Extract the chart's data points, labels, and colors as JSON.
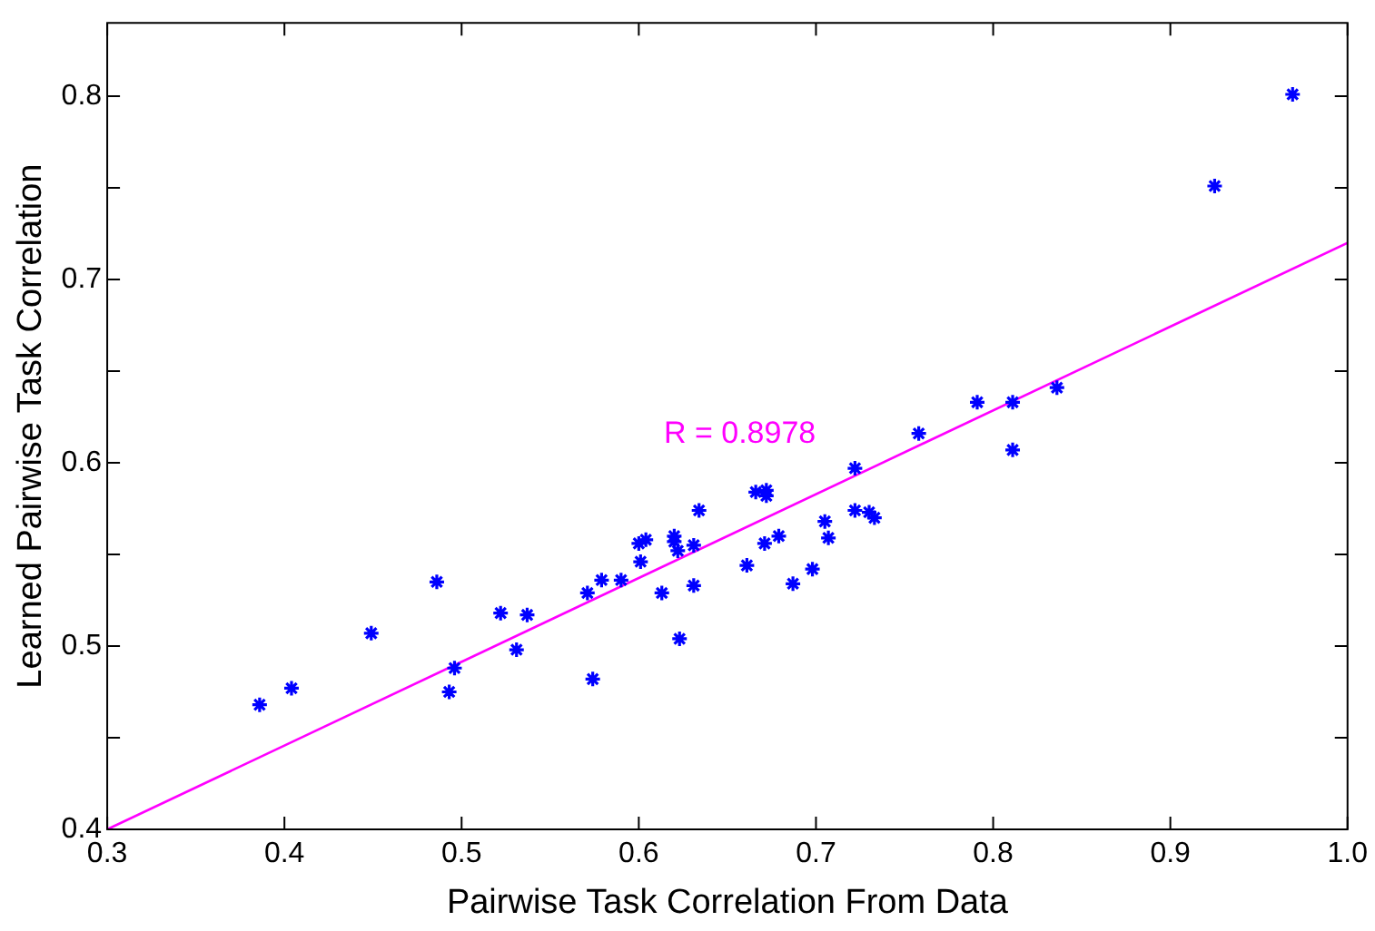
{
  "chart_data": {
    "type": "scatter",
    "xlabel": "Pairwise Task Correlation From Data",
    "ylabel": "Learned Pairwise Task Correlation",
    "xlim": [
      0.3,
      1.0
    ],
    "ylim": [
      0.4,
      0.84
    ],
    "xticks": [
      0.3,
      0.4,
      0.5,
      0.6,
      0.7,
      0.8,
      0.9,
      {
        "value": 1,
        "label": "1.0"
      }
    ],
    "yticks": [
      0.4,
      {
        "value": 0.45,
        "label": null
      },
      0.5,
      {
        "value": 0.55,
        "label": null
      },
      0.6,
      {
        "value": 0.65,
        "label": null
      },
      0.7,
      {
        "value": 0.75,
        "label": null
      },
      0.8
    ],
    "grid": false,
    "legend": false,
    "marker": "cross",
    "series": [
      {
        "color": "#0000ff",
        "x": [
          0.386,
          0.404,
          0.449,
          0.486,
          0.493,
          0.496,
          0.522,
          0.537,
          0.531,
          0.571,
          0.574,
          0.579,
          0.59,
          0.6,
          0.604,
          0.601,
          0.613,
          0.62,
          0.62,
          0.622,
          0.623,
          0.631,
          0.631,
          0.634,
          0.661,
          0.666,
          0.672,
          0.672,
          0.671,
          0.679,
          0.687,
          0.698,
          0.705,
          0.707,
          0.722,
          0.722,
          0.73,
          0.733,
          0.758,
          0.791,
          0.811,
          0.811,
          0.836,
          0.925,
          0.969
        ],
        "values": [
          0.468,
          0.477,
          0.507,
          0.535,
          0.475,
          0.488,
          0.518,
          0.517,
          0.498,
          0.529,
          0.482,
          0.536,
          0.536,
          0.556,
          0.558,
          0.546,
          0.529,
          0.56,
          0.557,
          0.552,
          0.504,
          0.533,
          0.555,
          0.574,
          0.544,
          0.584,
          0.585,
          0.582,
          0.556,
          0.56,
          0.534,
          0.542,
          0.568,
          0.559,
          0.574,
          0.597,
          0.573,
          0.57,
          0.616,
          0.633,
          0.633,
          0.607,
          0.641,
          0.751,
          0.801
        ]
      },
      {
        "type": "line",
        "color": "#ff00ff",
        "x": [
          0.3,
          1.0
        ],
        "values": [
          0.4,
          0.72
        ],
        "marker": "none"
      }
    ],
    "annotations": [
      "R = 0.8978"
    ]
  }
}
